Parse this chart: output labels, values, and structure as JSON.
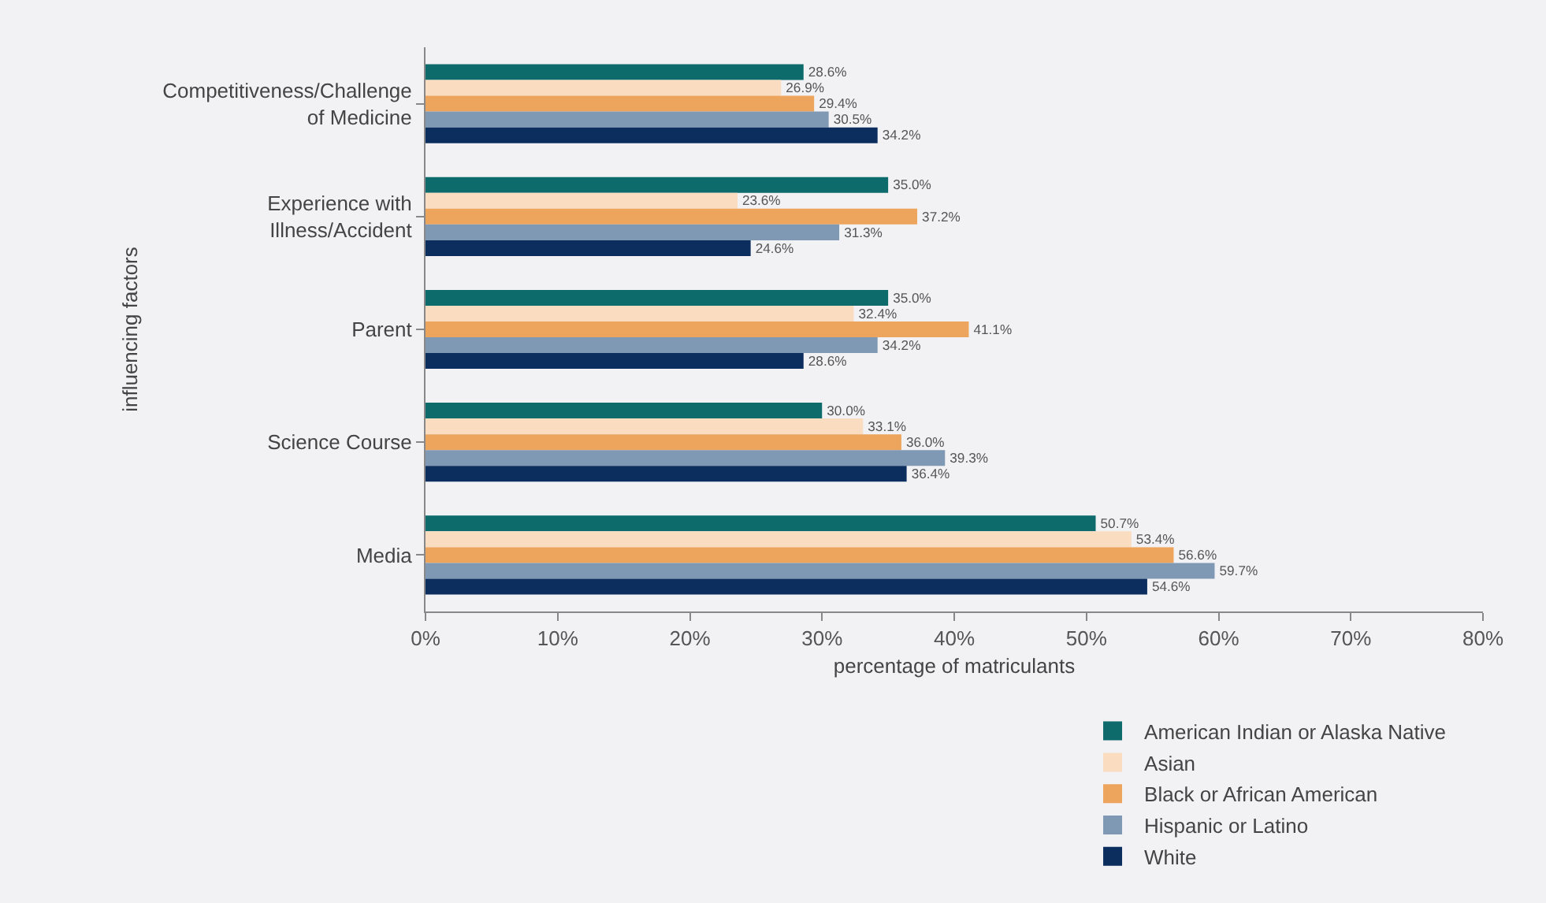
{
  "chart_data": {
    "type": "bar",
    "orientation": "horizontal",
    "xlabel": "percentage of matriculants",
    "ylabel": "influencing factors",
    "categories": [
      "Competitiveness/Challenge of Medicine",
      "Experience with Illness/Accident",
      "Parent",
      "Science Course",
      "Media"
    ],
    "series": [
      {
        "name": "American Indian or Alaska Native",
        "color": "#0e6b6b",
        "values": [
          28.6,
          35.0,
          35.0,
          30.0,
          50.7
        ],
        "value_labels": [
          "28.6%",
          "35.0%",
          "35.0%",
          "30.0%",
          "50.7%"
        ]
      },
      {
        "name": "Asian",
        "color": "#fadcc0",
        "values": [
          26.9,
          23.6,
          32.4,
          33.1,
          53.4
        ],
        "value_labels": [
          "26.9%",
          "23.6%",
          "32.4%",
          "33.1%",
          "53.4%"
        ]
      },
      {
        "name": "Black or African American",
        "color": "#eda45c",
        "values": [
          29.4,
          37.2,
          41.1,
          36.0,
          56.6
        ],
        "value_labels": [
          "29.4%",
          "37.2%",
          "41.1%",
          "36.0%",
          "56.6%"
        ]
      },
      {
        "name": "Hispanic or Latino",
        "color": "#7f98b4",
        "values": [
          30.5,
          31.3,
          34.2,
          39.3,
          59.7
        ],
        "value_labels": [
          "30.5%",
          "31.3%",
          "34.2%",
          "39.3%",
          "59.7%"
        ]
      },
      {
        "name": "White",
        "color": "#0b2e5e",
        "values": [
          34.2,
          24.6,
          28.6,
          36.4,
          54.6
        ],
        "value_labels": [
          "34.2%",
          "24.6%",
          "28.6%",
          "36.4%",
          "54.6%"
        ]
      }
    ],
    "xlim": [
      0,
      80
    ],
    "xticks": [
      {
        "value": 0,
        "label": "0%"
      },
      {
        "value": 10,
        "label": "10%"
      },
      {
        "value": 20,
        "label": "20%"
      },
      {
        "value": 30,
        "label": "30%"
      },
      {
        "value": 40,
        "label": "40%"
      },
      {
        "value": 50,
        "label": "50%"
      },
      {
        "value": 60,
        "label": "60%"
      },
      {
        "value": 70,
        "label": "70%"
      },
      {
        "value": 80,
        "label": "80%"
      }
    ],
    "grid": false,
    "legend": "bottom right"
  }
}
